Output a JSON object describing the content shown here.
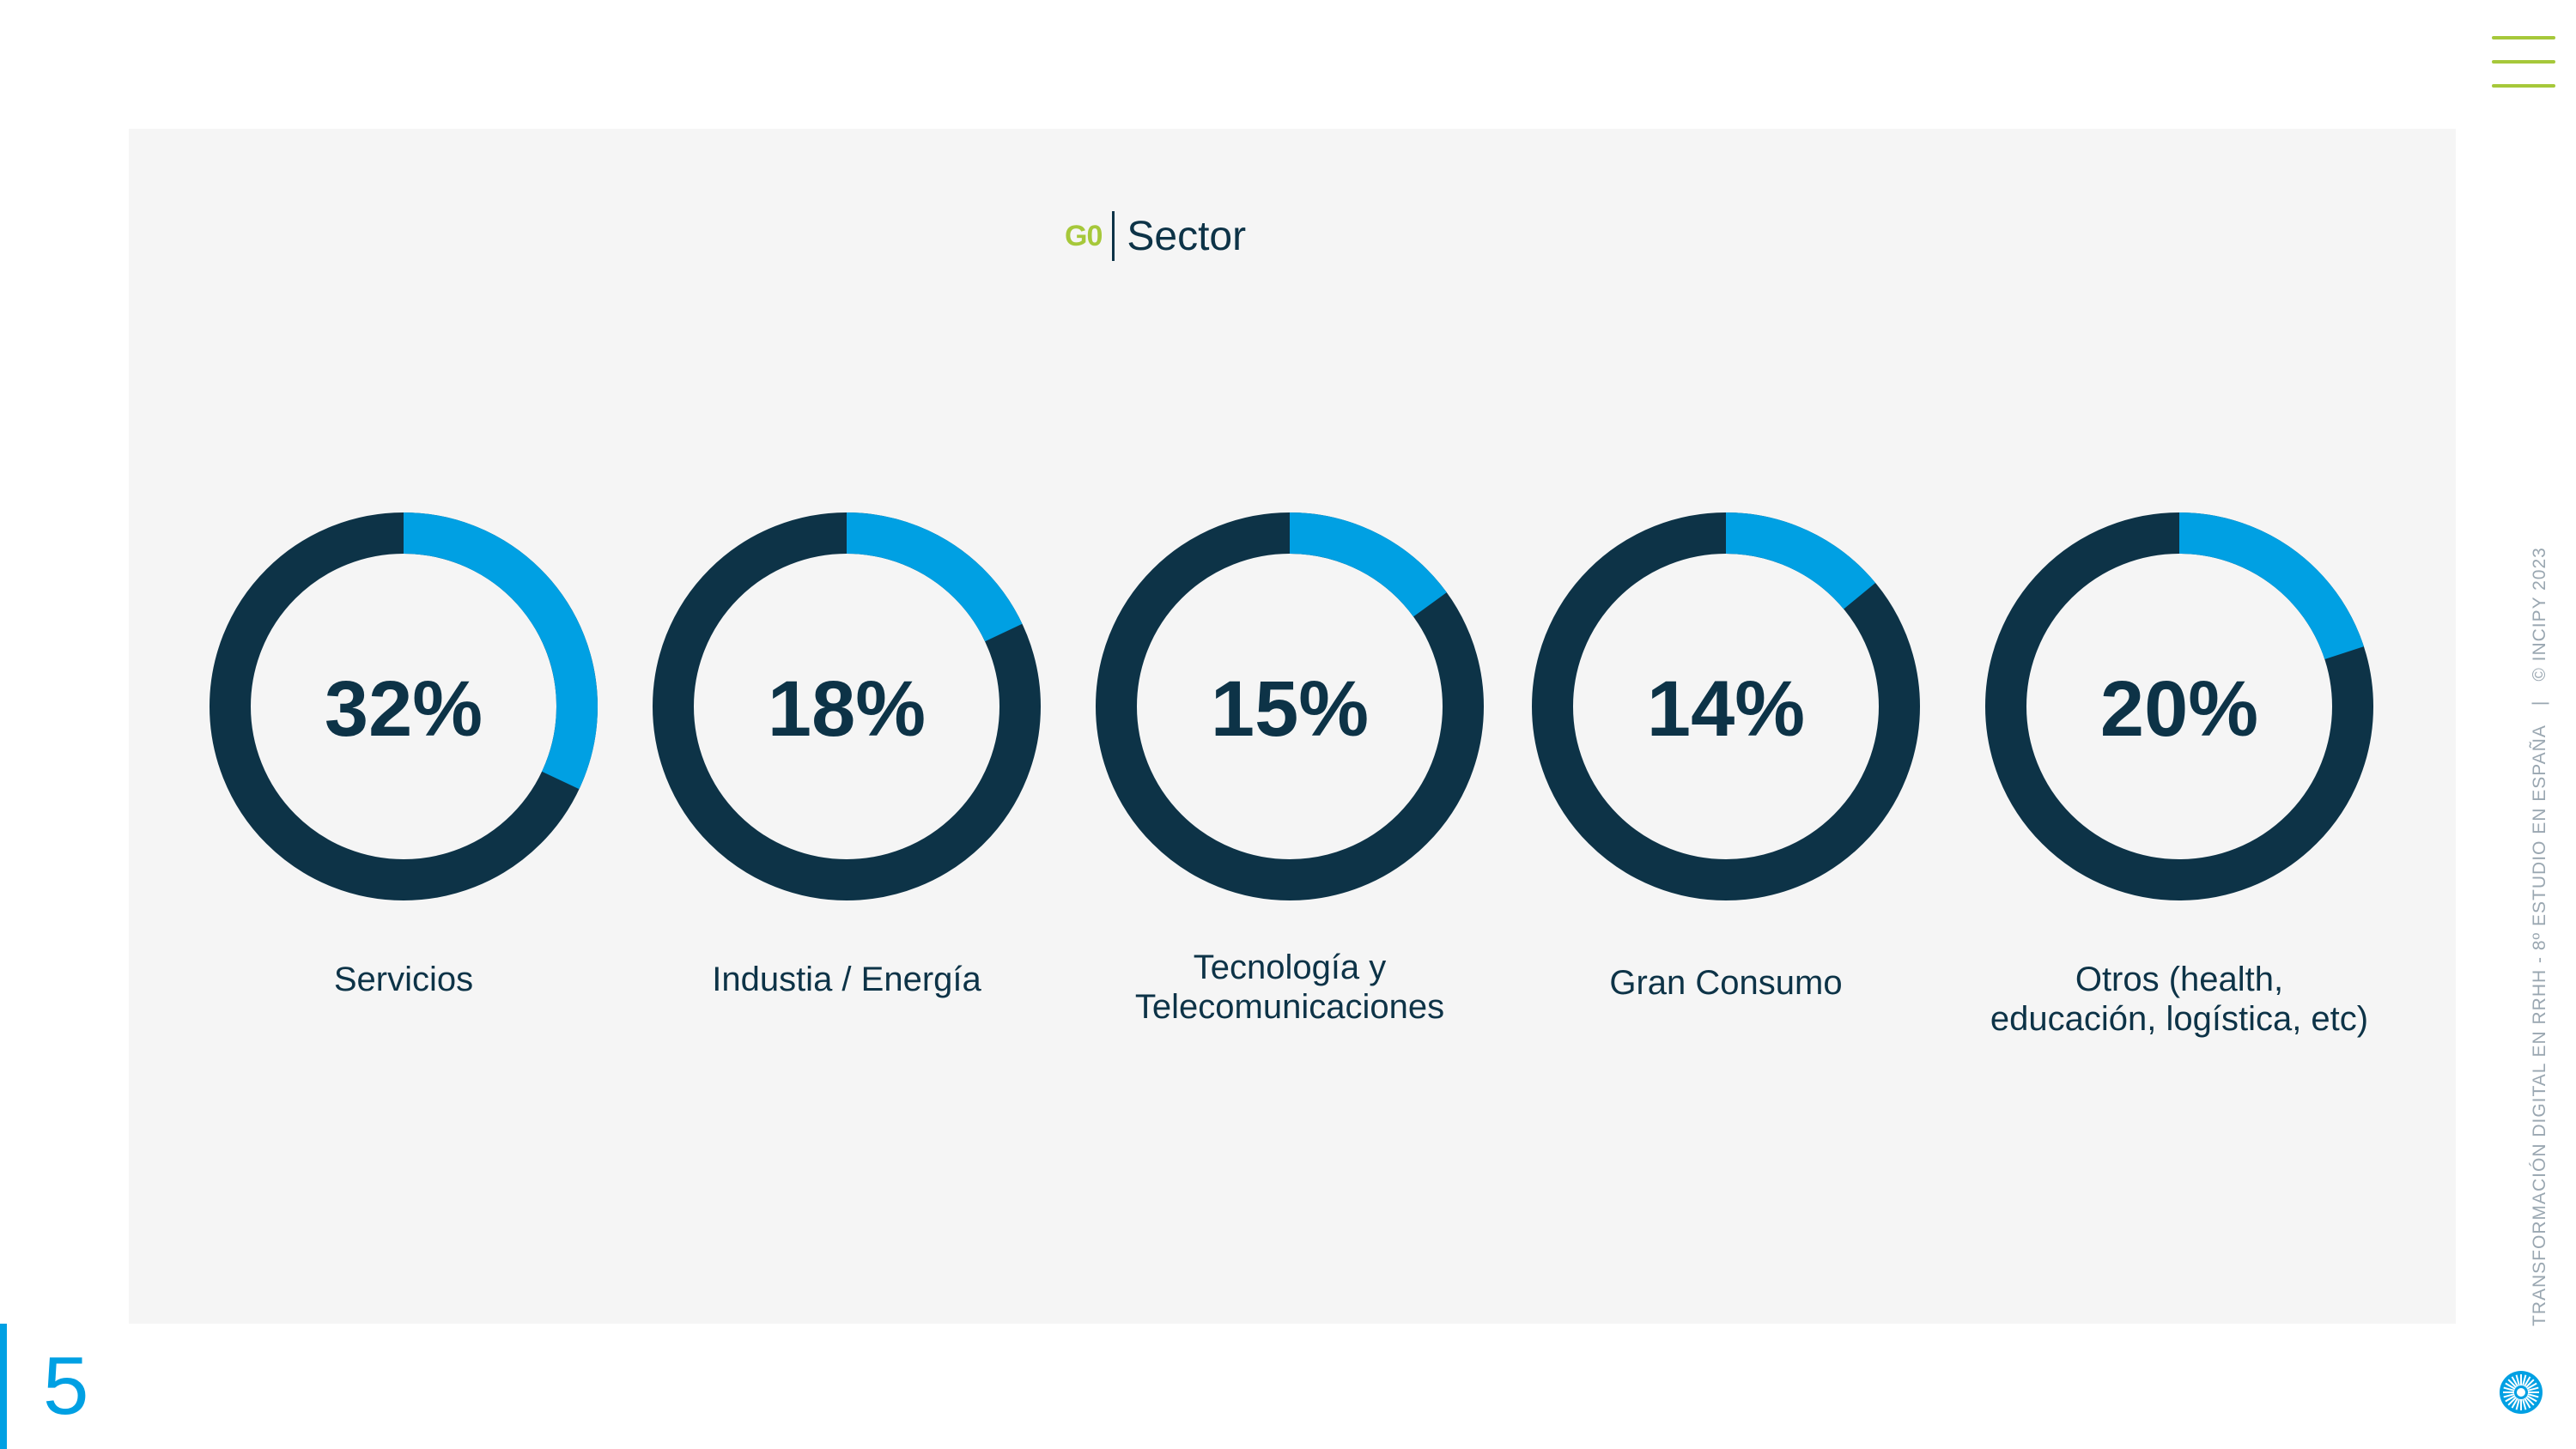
{
  "header": {
    "menu_icon": "hamburger-menu-icon"
  },
  "section": {
    "code": "G0",
    "title": "Sector"
  },
  "chart_data": {
    "type": "pie",
    "categories": [
      "Servicios",
      "Industia / Energía",
      "Tecnología y\nTelecomunicaciones",
      "Gran Consumo",
      "Otros (health,\neducación, logística, etc)"
    ],
    "values": [
      32,
      18,
      15,
      14,
      20
    ],
    "value_labels": [
      "32%",
      "18%",
      "15%",
      "14%",
      "20%"
    ],
    "title": "Sector",
    "colors": {
      "highlight": "#00a0e3",
      "remainder": "#0d3347"
    }
  },
  "sidebar": {
    "report": "TRANSFORMACIÓN DIGITAL EN RRHH - 8º ESTUDIO EN ESPAÑA",
    "separator": "|",
    "copyright": "© INCIPY 2023",
    "logo_icon": "sunburst-logo-icon"
  },
  "footer": {
    "page_number": "5",
    "accent": "#00a0e3"
  }
}
